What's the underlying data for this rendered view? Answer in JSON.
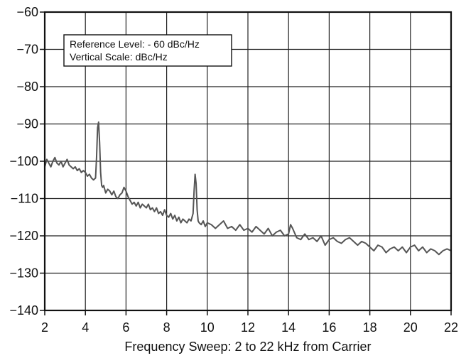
{
  "chart_data": {
    "type": "line",
    "title": "",
    "xlabel": "Frequency Sweep: 2 to 22 kHz from Carrier",
    "ylabel": "",
    "xlim": [
      2,
      22
    ],
    "ylim": [
      -140,
      -60
    ],
    "grid": true,
    "x_ticks": [
      2,
      4,
      6,
      8,
      10,
      12,
      14,
      16,
      18,
      20,
      22
    ],
    "y_ticks": [
      -60,
      -70,
      -80,
      -90,
      -100,
      -110,
      -120,
      -130,
      -140
    ],
    "x_tick_labels": [
      "2",
      "4",
      "6",
      "8",
      "10",
      "12",
      "14",
      "16",
      "18",
      "20",
      "22"
    ],
    "y_tick_labels": [
      "−60",
      "−70",
      "−80",
      "−90",
      "−100",
      "−110",
      "−120",
      "−130",
      "−140"
    ],
    "annotation": {
      "line1": "Reference Level: - 60 dBc/Hz",
      "line2": "Vertical Scale: dBc/Hz"
    },
    "colors": {
      "series": "#555555",
      "grid": "#222222",
      "axes": "#111111",
      "text": "#111111"
    },
    "series": [
      {
        "x": [
          2.0,
          2.1,
          2.2,
          2.3,
          2.4,
          2.5,
          2.6,
          2.7,
          2.8,
          2.9,
          3.0,
          3.1,
          3.2,
          3.3,
          3.4,
          3.5,
          3.6,
          3.7,
          3.8,
          3.9,
          4.0,
          4.1,
          4.2,
          4.3,
          4.4,
          4.5,
          4.55,
          4.6,
          4.65,
          4.7,
          4.75,
          4.8,
          4.85,
          4.9,
          5.0,
          5.1,
          5.2,
          5.3,
          5.4,
          5.5,
          5.6,
          5.7,
          5.8,
          5.9,
          6.0,
          6.1,
          6.2,
          6.3,
          6.4,
          6.5,
          6.6,
          6.7,
          6.8,
          6.9,
          7.0,
          7.1,
          7.2,
          7.3,
          7.4,
          7.5,
          7.6,
          7.7,
          7.8,
          7.9,
          8.0,
          8.1,
          8.2,
          8.3,
          8.4,
          8.5,
          8.6,
          8.7,
          8.8,
          8.9,
          9.0,
          9.1,
          9.2,
          9.3,
          9.35,
          9.4,
          9.45,
          9.5,
          9.55,
          9.6,
          9.7,
          9.8,
          9.9,
          10.0,
          10.2,
          10.4,
          10.6,
          10.8,
          11.0,
          11.2,
          11.4,
          11.6,
          11.8,
          12.0,
          12.2,
          12.4,
          12.6,
          12.8,
          13.0,
          13.2,
          13.4,
          13.6,
          13.8,
          14.0,
          14.1,
          14.2,
          14.4,
          14.6,
          14.8,
          15.0,
          15.2,
          15.4,
          15.6,
          15.8,
          16.0,
          16.2,
          16.4,
          16.6,
          16.8,
          17.0,
          17.2,
          17.4,
          17.6,
          17.8,
          18.0,
          18.2,
          18.4,
          18.6,
          18.8,
          19.0,
          19.2,
          19.4,
          19.6,
          19.8,
          20.0,
          20.2,
          20.4,
          20.6,
          20.8,
          21.0,
          21.2,
          21.4,
          21.6,
          21.8,
          22.0
        ],
        "values": [
          -101.5,
          -99.5,
          -100.5,
          -101.5,
          -100.0,
          -99.0,
          -100.5,
          -101.0,
          -100.0,
          -101.5,
          -100.5,
          -99.5,
          -101.0,
          -101.5,
          -102.0,
          -101.5,
          -102.5,
          -102.0,
          -103.0,
          -102.5,
          -103.0,
          -104.0,
          -103.5,
          -104.5,
          -105.0,
          -104.5,
          -99.0,
          -91.0,
          -89.5,
          -95.0,
          -103.0,
          -106.5,
          -107.0,
          -106.5,
          -108.5,
          -107.5,
          -108.0,
          -109.0,
          -108.0,
          -109.5,
          -110.0,
          -109.0,
          -108.5,
          -107.0,
          -108.0,
          -109.5,
          -110.5,
          -111.5,
          -111.0,
          -112.0,
          -111.0,
          -112.5,
          -111.5,
          -112.0,
          -112.5,
          -111.5,
          -113.0,
          -112.5,
          -113.5,
          -112.5,
          -114.0,
          -113.5,
          -114.5,
          -113.0,
          -114.5,
          -115.0,
          -114.0,
          -115.5,
          -114.5,
          -116.0,
          -115.0,
          -116.5,
          -115.5,
          -116.0,
          -116.5,
          -115.5,
          -116.0,
          -114.0,
          -108.0,
          -103.5,
          -106.0,
          -113.0,
          -116.0,
          -116.5,
          -117.0,
          -116.0,
          -117.5,
          -116.5,
          -117.0,
          -118.0,
          -117.0,
          -116.0,
          -118.0,
          -117.5,
          -118.5,
          -117.0,
          -118.5,
          -118.0,
          -119.0,
          -117.5,
          -118.5,
          -119.5,
          -118.0,
          -120.0,
          -119.0,
          -118.5,
          -120.0,
          -119.5,
          -117.0,
          -118.0,
          -120.5,
          -121.0,
          -119.5,
          -121.0,
          -120.5,
          -121.5,
          -120.0,
          -122.5,
          -121.0,
          -120.5,
          -121.5,
          -122.0,
          -121.0,
          -120.5,
          -121.5,
          -122.5,
          -121.5,
          -122.0,
          -123.0,
          -124.0,
          -122.5,
          -123.0,
          -124.5,
          -123.5,
          -123.0,
          -124.0,
          -123.0,
          -124.5,
          -123.0,
          -122.5,
          -124.0,
          -123.0,
          -124.5,
          -123.5,
          -124.0,
          -125.0,
          -124.0,
          -123.5,
          -124.0
        ]
      }
    ]
  }
}
